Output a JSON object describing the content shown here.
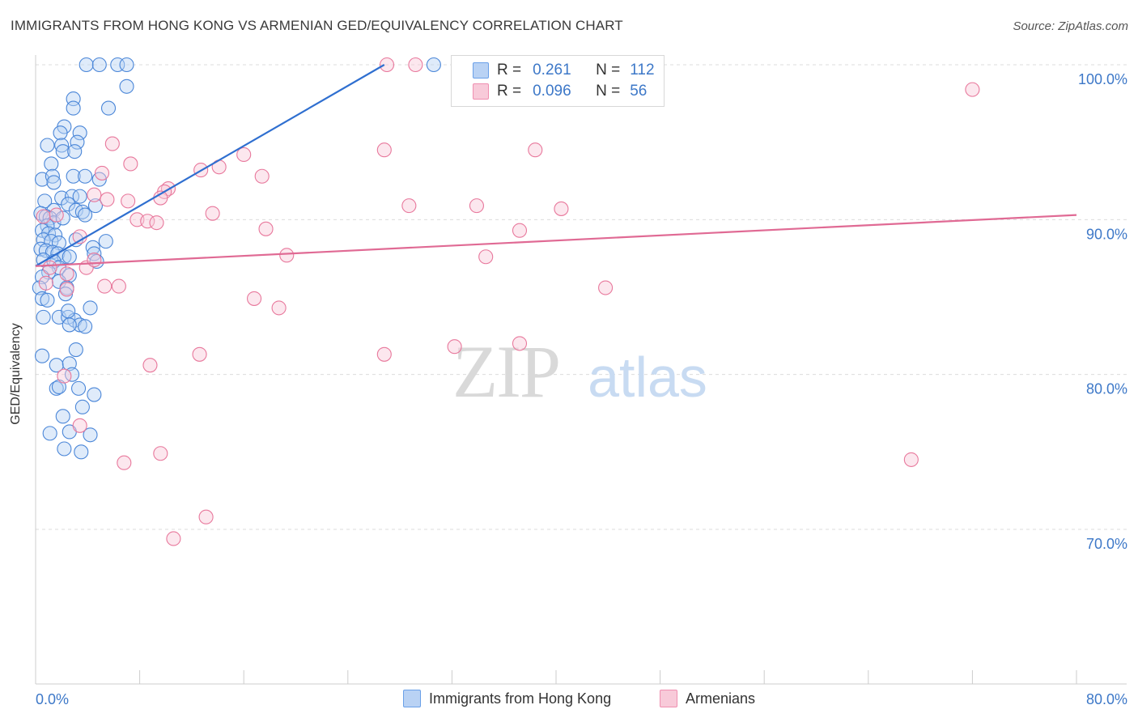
{
  "title": "IMMIGRANTS FROM HONG KONG VS ARMENIAN GED/EQUIVALENCY CORRELATION CHART",
  "source": "Source: ZipAtlas.com",
  "watermark": {
    "zip": "ZIP",
    "atlas": "atlas"
  },
  "legend": {
    "r_label": "R =",
    "n_label": "N =",
    "rows": [
      {
        "r": "0.261",
        "n": "112",
        "color": "#6aa0e8",
        "fill": "#b9d2f4"
      },
      {
        "r": "0.096",
        "n": "56",
        "color": "#ef8fb0",
        "fill": "#f8cad9"
      }
    ]
  },
  "bottom_legend": [
    "Immigrants from Hong Kong",
    "Armenians"
  ],
  "chart_data": {
    "type": "scatter",
    "xlabel": "",
    "ylabel": "GED/Equivalency",
    "xlim": [
      0,
      80
    ],
    "ylim": [
      60,
      102
    ],
    "x_tick_labels": {
      "0": "0.0%",
      "80": "80.0%"
    },
    "y_tick_labels": [
      {
        "y": 100,
        "label": "100.0%"
      },
      {
        "y": 90,
        "label": "90.0%"
      },
      {
        "y": 80,
        "label": "80.0%"
      },
      {
        "y": 70,
        "label": "70.0%"
      }
    ],
    "grid": true,
    "series": [
      {
        "name": "Immigrants from Hong Kong",
        "color": "#4a86d8",
        "trend": {
          "x": [
            0,
            26.8
          ],
          "y": [
            87.0,
            100.0
          ]
        },
        "points": [
          [
            3.9,
            100
          ],
          [
            4.9,
            100
          ],
          [
            6.3,
            100
          ],
          [
            7.0,
            100
          ],
          [
            30.6,
            100
          ],
          [
            7.0,
            98.6
          ],
          [
            2.9,
            97.8
          ],
          [
            2.9,
            97.2
          ],
          [
            5.6,
            97.2
          ],
          [
            2.2,
            96.0
          ],
          [
            1.9,
            95.6
          ],
          [
            3.4,
            95.6
          ],
          [
            0.9,
            94.8
          ],
          [
            2.0,
            94.8
          ],
          [
            3.2,
            95.0
          ],
          [
            2.1,
            94.4
          ],
          [
            3.0,
            94.4
          ],
          [
            1.2,
            93.6
          ],
          [
            0.5,
            92.6
          ],
          [
            1.3,
            92.8
          ],
          [
            2.9,
            92.8
          ],
          [
            3.8,
            92.8
          ],
          [
            4.9,
            92.6
          ],
          [
            1.4,
            92.4
          ],
          [
            0.7,
            91.2
          ],
          [
            2.0,
            91.4
          ],
          [
            2.8,
            91.5
          ],
          [
            3.4,
            91.5
          ],
          [
            2.5,
            91.0
          ],
          [
            4.6,
            90.9
          ],
          [
            1.4,
            90.6
          ],
          [
            3.1,
            90.6
          ],
          [
            3.6,
            90.5
          ],
          [
            3.8,
            90.3
          ],
          [
            0.4,
            90.4
          ],
          [
            0.8,
            90.2
          ],
          [
            1.1,
            90.1
          ],
          [
            1.4,
            89.8
          ],
          [
            2.1,
            90.1
          ],
          [
            0.9,
            89.6
          ],
          [
            0.5,
            89.3
          ],
          [
            1.0,
            89.1
          ],
          [
            1.5,
            89.0
          ],
          [
            0.6,
            88.7
          ],
          [
            1.2,
            88.6
          ],
          [
            1.8,
            88.5
          ],
          [
            3.1,
            88.7
          ],
          [
            5.4,
            88.6
          ],
          [
            0.4,
            88.1
          ],
          [
            0.8,
            88.0
          ],
          [
            1.3,
            87.9
          ],
          [
            1.7,
            87.8
          ],
          [
            2.2,
            87.6
          ],
          [
            4.4,
            88.2
          ],
          [
            0.6,
            87.4
          ],
          [
            1.4,
            87.3
          ],
          [
            2.6,
            87.6
          ],
          [
            4.5,
            87.8
          ],
          [
            1.8,
            86.9
          ],
          [
            4.7,
            87.3
          ],
          [
            1.0,
            86.6
          ],
          [
            0.5,
            86.3
          ],
          [
            2.6,
            86.4
          ],
          [
            1.8,
            86.0
          ],
          [
            0.3,
            85.6
          ],
          [
            2.4,
            85.6
          ],
          [
            2.3,
            85.2
          ],
          [
            0.5,
            84.9
          ],
          [
            0.9,
            84.8
          ],
          [
            4.2,
            84.3
          ],
          [
            0.6,
            83.7
          ],
          [
            1.8,
            83.7
          ],
          [
            2.5,
            83.7
          ],
          [
            3.0,
            83.5
          ],
          [
            3.4,
            83.2
          ],
          [
            3.8,
            83.1
          ],
          [
            2.6,
            83.2
          ],
          [
            2.5,
            84.1
          ],
          [
            3.1,
            81.6
          ],
          [
            0.5,
            81.2
          ],
          [
            1.6,
            80.6
          ],
          [
            2.6,
            80.7
          ],
          [
            2.8,
            80.0
          ],
          [
            1.6,
            79.1
          ],
          [
            1.8,
            79.2
          ],
          [
            3.3,
            79.1
          ],
          [
            4.5,
            78.7
          ],
          [
            3.6,
            77.9
          ],
          [
            2.1,
            77.3
          ],
          [
            1.1,
            76.2
          ],
          [
            2.6,
            76.3
          ],
          [
            4.2,
            76.1
          ],
          [
            2.2,
            75.2
          ],
          [
            3.5,
            75.0
          ]
        ]
      },
      {
        "name": "Armenians",
        "color": "#e8789c",
        "trend": {
          "x": [
            0,
            80
          ],
          "y": [
            87.0,
            90.3
          ]
        },
        "points": [
          [
            27.0,
            100
          ],
          [
            29.2,
            100
          ],
          [
            72.0,
            98.4
          ],
          [
            5.9,
            94.9
          ],
          [
            7.3,
            93.6
          ],
          [
            16.0,
            94.2
          ],
          [
            26.8,
            94.5
          ],
          [
            38.4,
            94.5
          ],
          [
            12.7,
            93.2
          ],
          [
            14.1,
            93.4
          ],
          [
            17.4,
            92.8
          ],
          [
            5.1,
            93.0
          ],
          [
            10.2,
            92.0
          ],
          [
            9.9,
            91.8
          ],
          [
            9.6,
            91.4
          ],
          [
            4.5,
            91.6
          ],
          [
            5.5,
            91.3
          ],
          [
            7.1,
            91.2
          ],
          [
            28.7,
            90.9
          ],
          [
            33.9,
            90.9
          ],
          [
            40.4,
            90.7
          ],
          [
            13.6,
            90.4
          ],
          [
            7.8,
            90.0
          ],
          [
            8.6,
            89.9
          ],
          [
            9.3,
            89.8
          ],
          [
            17.7,
            89.4
          ],
          [
            37.2,
            89.3
          ],
          [
            0.6,
            90.2
          ],
          [
            1.6,
            90.3
          ],
          [
            3.4,
            88.9
          ],
          [
            19.3,
            87.7
          ],
          [
            34.6,
            87.6
          ],
          [
            1.1,
            86.9
          ],
          [
            3.9,
            86.9
          ],
          [
            4.5,
            87.4
          ],
          [
            2.4,
            86.5
          ],
          [
            5.3,
            85.7
          ],
          [
            6.4,
            85.7
          ],
          [
            2.4,
            85.5
          ],
          [
            0.8,
            85.9
          ],
          [
            16.8,
            84.9
          ],
          [
            18.7,
            84.3
          ],
          [
            43.8,
            85.6
          ],
          [
            26.8,
            81.3
          ],
          [
            32.2,
            81.8
          ],
          [
            37.2,
            82.0
          ],
          [
            12.6,
            81.3
          ],
          [
            8.8,
            80.6
          ],
          [
            2.2,
            79.9
          ],
          [
            3.4,
            76.7
          ],
          [
            6.8,
            74.3
          ],
          [
            9.6,
            74.9
          ],
          [
            67.3,
            74.5
          ],
          [
            13.1,
            70.8
          ],
          [
            10.6,
            69.4
          ]
        ]
      }
    ]
  }
}
